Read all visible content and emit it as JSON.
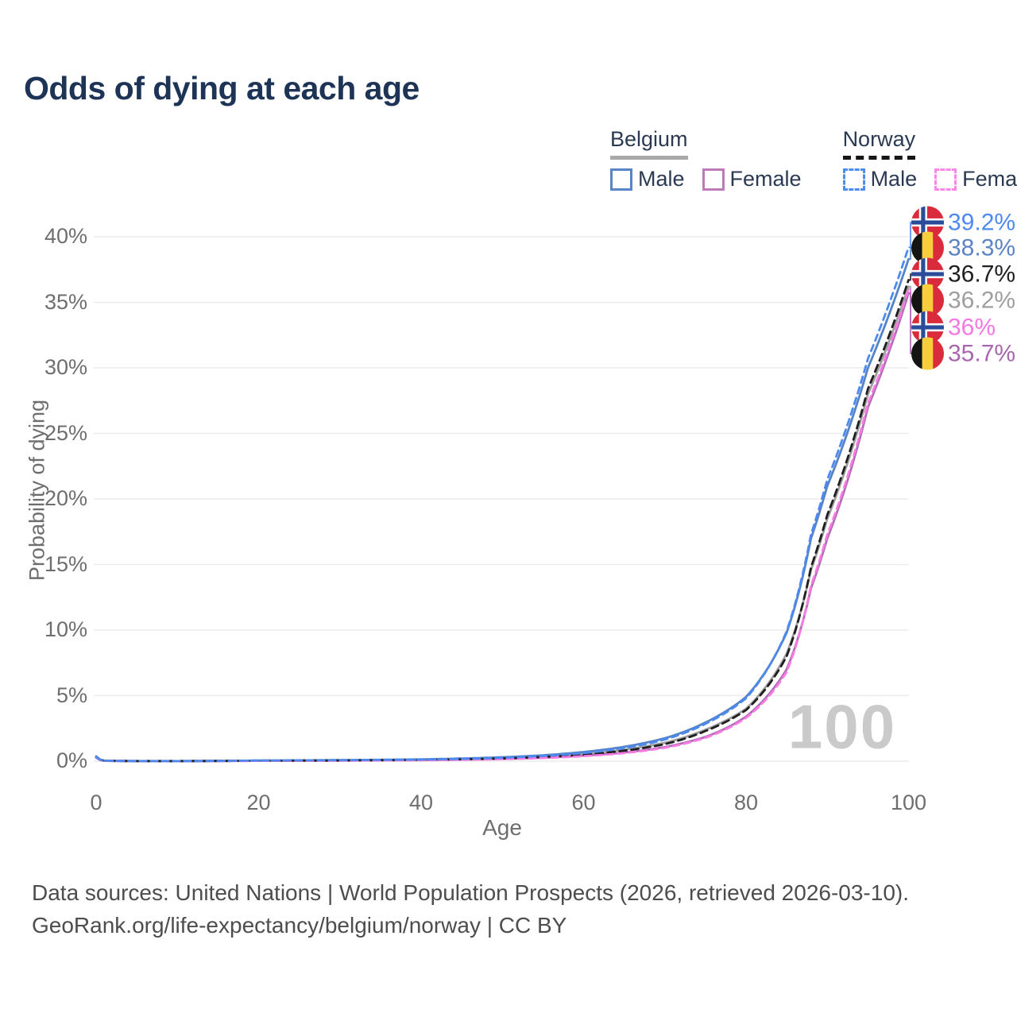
{
  "title": "Odds of dying at each age",
  "legend": {
    "groups": [
      {
        "country": "Belgium",
        "underline": "solid",
        "underline_color": "#a9a9a9",
        "items": [
          {
            "label": "Male",
            "color": "#5b84c4",
            "dashed": false
          },
          {
            "label": "Female",
            "color": "#bd7ab8",
            "dashed": false
          }
        ]
      },
      {
        "country": "Norway",
        "underline": "dashed",
        "underline_color": "#161616",
        "items": [
          {
            "label": "Male",
            "color": "#4d8cf3",
            "dashed": true
          },
          {
            "label": "Female",
            "color": "#fc86e9",
            "dashed": true
          }
        ]
      }
    ]
  },
  "chart_data": {
    "type": "line",
    "title": "Odds of dying at each age",
    "xlabel": "Age",
    "ylabel": "Probability of dying",
    "xlim": [
      0,
      100
    ],
    "ylim": [
      0,
      41
    ],
    "grid": "horizontal",
    "x_ticks": [
      0,
      20,
      40,
      60,
      80,
      100
    ],
    "y_ticks": [
      {
        "value": 0,
        "label": "0%"
      },
      {
        "value": 5,
        "label": "5%"
      },
      {
        "value": 10,
        "label": "10%"
      },
      {
        "value": 15,
        "label": "15%"
      },
      {
        "value": 20,
        "label": "20%"
      },
      {
        "value": 25,
        "label": "25%"
      },
      {
        "value": 30,
        "label": "30%"
      },
      {
        "value": 35,
        "label": "35%"
      },
      {
        "value": 40,
        "label": "40%"
      }
    ],
    "hovered_age_watermark": "100",
    "anchor_ages": [
      0,
      1,
      5,
      10,
      20,
      30,
      40,
      50,
      55,
      60,
      65,
      70,
      75,
      80,
      85,
      88,
      90,
      95,
      100
    ],
    "series": [
      {
        "name": "Belgium Both sexes",
        "country": "Belgium",
        "sex": "Both",
        "color": "#9e9e9e",
        "dash": null,
        "end_value_pct": 36.2,
        "values": [
          0.33,
          0.035,
          0.009,
          0.008,
          0.04,
          0.06,
          0.11,
          0.24,
          0.36,
          0.55,
          0.88,
          1.4,
          2.4,
          4.0,
          8.2,
          14.6,
          18.5,
          28.0,
          36.2
        ]
      },
      {
        "name": "Belgium Female",
        "country": "Belgium",
        "sex": "Female",
        "color": "#b06cb6",
        "dash": null,
        "end_value_pct": 35.7,
        "values": [
          0.3,
          0.03,
          0.008,
          0.006,
          0.025,
          0.045,
          0.08,
          0.17,
          0.26,
          0.42,
          0.66,
          1.08,
          1.85,
          3.4,
          7.0,
          13.2,
          17.0,
          27.0,
          35.7
        ]
      },
      {
        "name": "Belgium Male",
        "country": "Belgium",
        "sex": "Male",
        "color": "#5583c6",
        "dash": null,
        "end_value_pct": 38.3,
        "values": [
          0.37,
          0.04,
          0.01,
          0.009,
          0.05,
          0.08,
          0.14,
          0.3,
          0.45,
          0.7,
          1.1,
          1.75,
          2.95,
          4.9,
          9.8,
          17.0,
          21.0,
          30.0,
          38.3
        ]
      },
      {
        "name": "Norway Both sexes",
        "country": "Norway",
        "sex": "Both",
        "color": "#1f1f1f",
        "dash": "9 6",
        "end_value_pct": 36.7,
        "values": [
          0.28,
          0.028,
          0.007,
          0.007,
          0.035,
          0.055,
          0.1,
          0.21,
          0.32,
          0.5,
          0.8,
          1.3,
          2.3,
          3.9,
          8.0,
          14.8,
          18.8,
          28.4,
          36.7
        ]
      },
      {
        "name": "Norway Female",
        "country": "Norway",
        "sex": "Female",
        "color": "#fb7ae3",
        "dash": "8 6",
        "end_value_pct": 36.0,
        "values": [
          0.26,
          0.025,
          0.006,
          0.005,
          0.025,
          0.04,
          0.07,
          0.15,
          0.24,
          0.38,
          0.62,
          1.02,
          1.78,
          3.3,
          6.8,
          13.4,
          17.3,
          27.3,
          36.0
        ]
      },
      {
        "name": "Norway Male",
        "country": "Norway",
        "sex": "Male",
        "color": "#4c89f1",
        "dash": "8 6",
        "end_value_pct": 39.2,
        "values": [
          0.3,
          0.03,
          0.008,
          0.008,
          0.05,
          0.08,
          0.12,
          0.26,
          0.4,
          0.62,
          1.0,
          1.65,
          2.85,
          4.8,
          9.9,
          17.3,
          21.5,
          30.7,
          39.2
        ]
      }
    ],
    "end_labels": [
      {
        "flag": "norway",
        "value": "39.2%",
        "color": "#4c89f1",
        "series": "Norway Male"
      },
      {
        "flag": "belgium",
        "value": "38.3%",
        "color": "#5b84c4",
        "series": "Belgium Male"
      },
      {
        "flag": "norway",
        "value": "36.7%",
        "color": "#1f1f1f",
        "series": "Norway Both sexes"
      },
      {
        "flag": "belgium",
        "value": "36.2%",
        "color": "#9e9e9e",
        "series": "Belgium Both sexes"
      },
      {
        "flag": "norway",
        "value": "36%",
        "color": "#f478e4",
        "series": "Norway Female"
      },
      {
        "flag": "belgium",
        "value": "35.7%",
        "color": "#a866ae",
        "series": "Belgium Female"
      }
    ]
  },
  "footer": {
    "line1": "Data sources: United Nations | World Population Prospects (2026, retrieved 2026-03-10).",
    "line2": "GeoRank.org/life-expectancy/belgium/norway | CC BY"
  }
}
